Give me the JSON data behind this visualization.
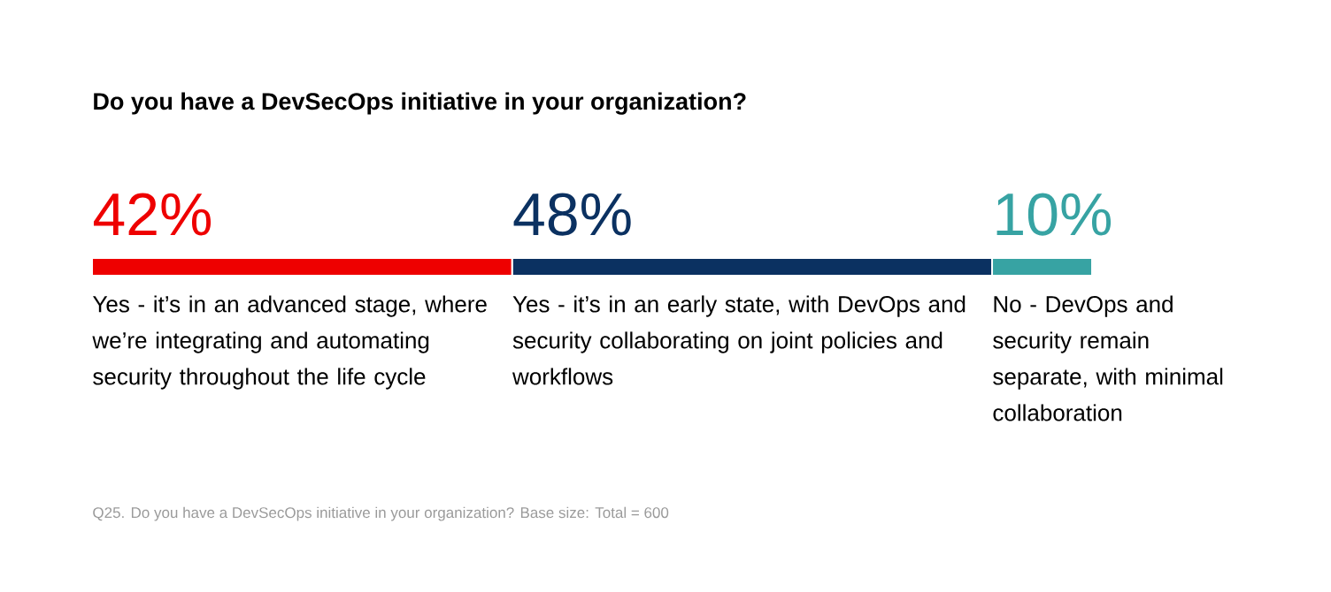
{
  "chart_data": {
    "type": "bar",
    "orientation": "horizontal",
    "stacked": true,
    "title": "Do you have a DevSecOps initiative in your organization?",
    "categories": [
      null
    ],
    "series": [
      {
        "name": "Yes - it’s in an advanced stage, where we’re integrating and automating security throughout the life cycle",
        "color": "#ee0000",
        "values": [
          42
        ],
        "value_labels": [
          "42%"
        ]
      },
      {
        "name": "Yes - it’s in an early state, with DevOps and security collaborating on joint policies and workflows",
        "color": "#0b3161",
        "values": [
          48
        ],
        "value_labels": [
          "48%"
        ]
      },
      {
        "name": "No - DevOps and security remain separate, with minimal collaboration",
        "color": "#37a3a3",
        "values": [
          10
        ],
        "value_labels": [
          "10%"
        ]
      }
    ],
    "annotations": [
      "Q25. Do you have a DevSecOps initiative in your organization? Base size: Total = 600"
    ]
  }
}
